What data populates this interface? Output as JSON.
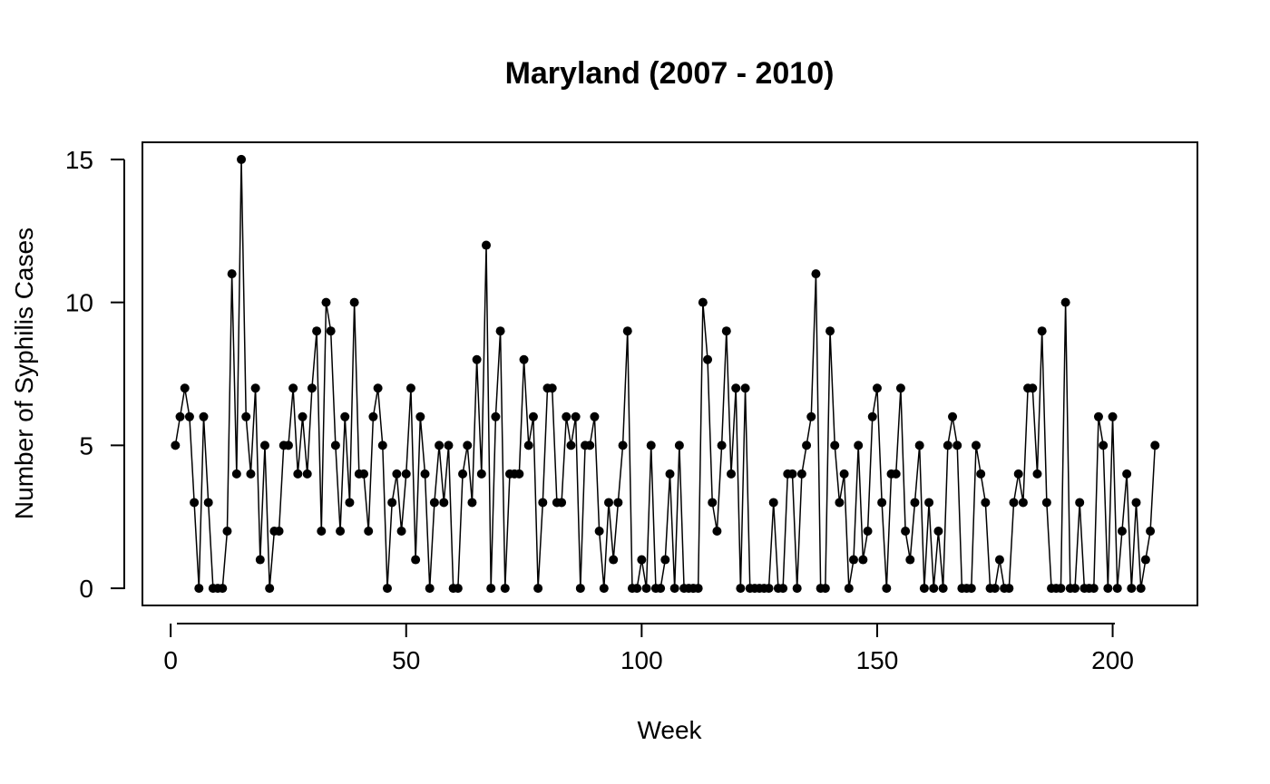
{
  "chart_data": {
    "type": "line",
    "title": "Maryland (2007 - 2010)",
    "xlabel": "Week",
    "ylabel": "Number of Syphilis Cases",
    "xlim": [
      -6,
      218
    ],
    "ylim": [
      -0.6,
      15.6
    ],
    "xticks": [
      0,
      50,
      100,
      150,
      200
    ],
    "yticks": [
      0,
      5,
      10,
      15
    ],
    "grid": false,
    "legend": "none",
    "markers": true,
    "color": "#000000",
    "x": [
      1,
      2,
      3,
      4,
      5,
      6,
      7,
      8,
      9,
      10,
      11,
      12,
      13,
      14,
      15,
      16,
      17,
      18,
      19,
      20,
      21,
      22,
      23,
      24,
      25,
      26,
      27,
      28,
      29,
      30,
      31,
      32,
      33,
      34,
      35,
      36,
      37,
      38,
      39,
      40,
      41,
      42,
      43,
      44,
      45,
      46,
      47,
      48,
      49,
      50,
      51,
      52,
      53,
      54,
      55,
      56,
      57,
      58,
      59,
      60,
      61,
      62,
      63,
      64,
      65,
      66,
      67,
      68,
      69,
      70,
      71,
      72,
      73,
      74,
      75,
      76,
      77,
      78,
      79,
      80,
      81,
      82,
      83,
      84,
      85,
      86,
      87,
      88,
      89,
      90,
      91,
      92,
      93,
      94,
      95,
      96,
      97,
      98,
      99,
      100,
      101,
      102,
      103,
      104,
      105,
      106,
      107,
      108,
      109,
      110,
      111,
      112,
      113,
      114,
      115,
      116,
      117,
      118,
      119,
      120,
      121,
      122,
      123,
      124,
      125,
      126,
      127,
      128,
      129,
      130,
      131,
      132,
      133,
      134,
      135,
      136,
      137,
      138,
      139,
      140,
      141,
      142,
      143,
      144,
      145,
      146,
      147,
      148,
      149,
      150,
      151,
      152,
      153,
      154,
      155,
      156,
      157,
      158,
      159,
      160,
      161,
      162,
      163,
      164,
      165,
      166,
      167,
      168,
      169,
      170,
      171,
      172,
      173,
      174,
      175,
      176,
      177,
      178,
      179,
      180,
      181,
      182,
      183,
      184,
      185,
      186,
      187,
      188,
      189,
      190,
      191,
      192,
      193,
      194,
      195,
      196,
      197,
      198,
      199,
      200,
      201,
      202,
      203,
      204,
      205,
      206,
      207,
      208,
      209
    ],
    "y": [
      5,
      6,
      7,
      6,
      3,
      0,
      6,
      3,
      0,
      0,
      0,
      2,
      11,
      4,
      15,
      6,
      4,
      7,
      1,
      5,
      0,
      2,
      2,
      5,
      5,
      7,
      4,
      6,
      4,
      7,
      9,
      2,
      10,
      9,
      5,
      2,
      6,
      3,
      10,
      4,
      4,
      2,
      6,
      7,
      5,
      0,
      3,
      4,
      2,
      4,
      7,
      1,
      6,
      4,
      0,
      3,
      5,
      3,
      5,
      0,
      0,
      4,
      5,
      3,
      8,
      4,
      12,
      0,
      6,
      9,
      0,
      4,
      4,
      4,
      8,
      5,
      6,
      0,
      3,
      7,
      7,
      3,
      3,
      6,
      5,
      6,
      0,
      5,
      5,
      6,
      2,
      0,
      3,
      1,
      3,
      5,
      9,
      0,
      0,
      1,
      0,
      5,
      0,
      0,
      1,
      4,
      0,
      5,
      0,
      0,
      0,
      0,
      10,
      8,
      3,
      2,
      5,
      9,
      4,
      7,
      0,
      7,
      0,
      0,
      0,
      0,
      0,
      3,
      0,
      0,
      4,
      4,
      0,
      4,
      5,
      6,
      11,
      0,
      0,
      9,
      5,
      3,
      4,
      0,
      1,
      5,
      1,
      2,
      6,
      7,
      3,
      0,
      4,
      4,
      7,
      2,
      1,
      3,
      5,
      0,
      3,
      0,
      2,
      0,
      5,
      6,
      5,
      0,
      0,
      0,
      5,
      4,
      3,
      0,
      0,
      1,
      0,
      0,
      3,
      4,
      3,
      7,
      7,
      4,
      9,
      3,
      0,
      0,
      0,
      10,
      0,
      0,
      3,
      0,
      0,
      0,
      6,
      5,
      0,
      6,
      0,
      2,
      4,
      0,
      3,
      0,
      1,
      2,
      5
    ]
  }
}
